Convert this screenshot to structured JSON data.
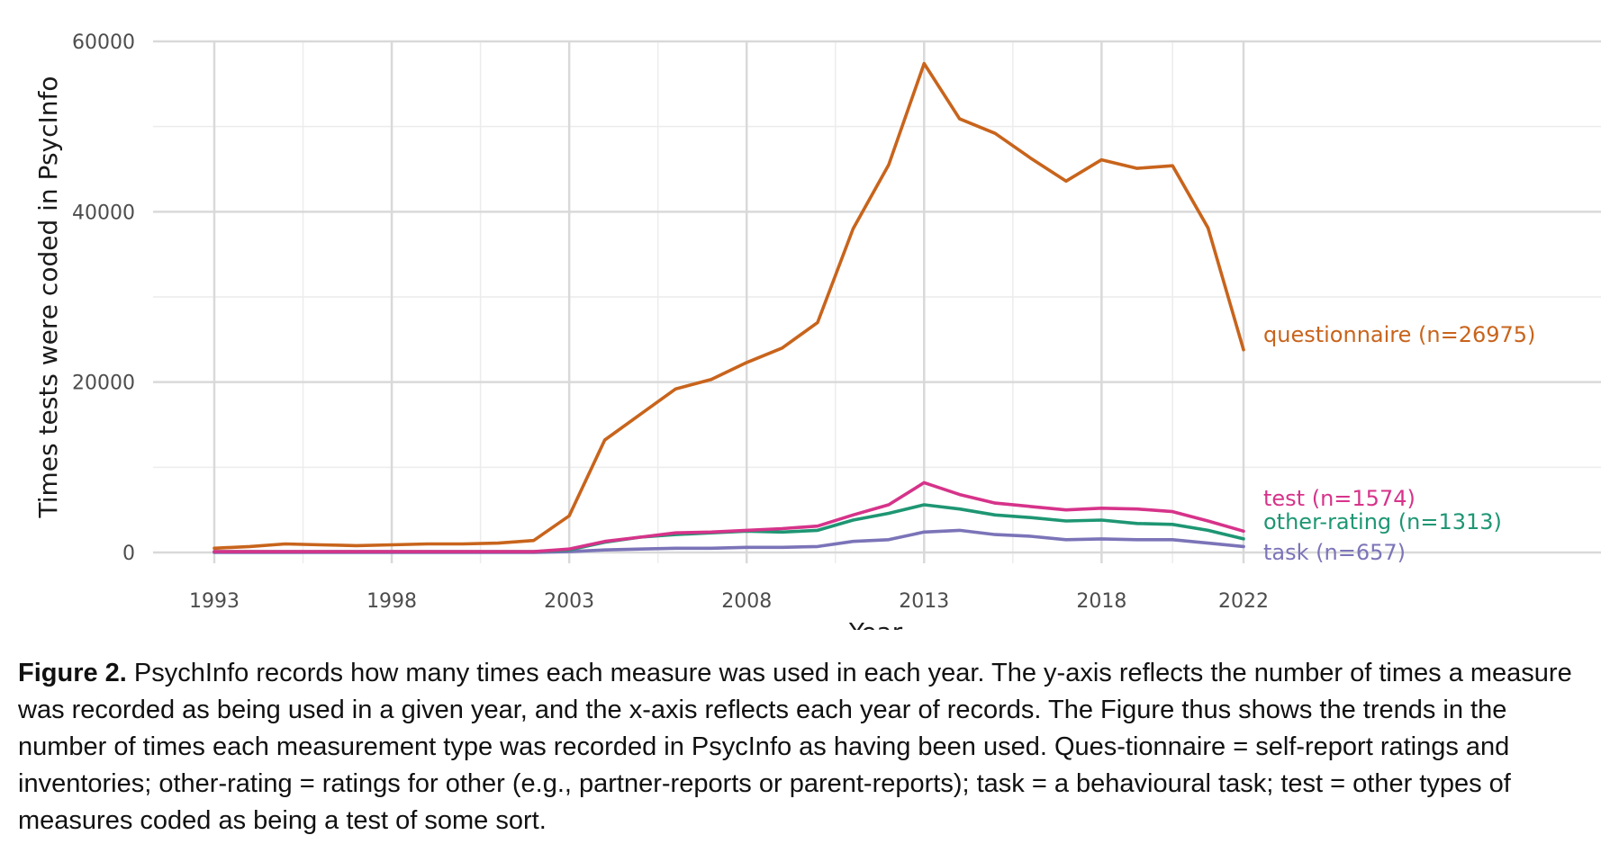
{
  "chart_data": {
    "type": "line",
    "xlabel": "Year",
    "ylabel": "Times tests were coded in PsycInfo",
    "xlim": [
      1993,
      2022
    ],
    "ylim": [
      0,
      60000
    ],
    "x_ticks": [
      "1993",
      "1998",
      "2003",
      "2008",
      "2013",
      "2018",
      "2022"
    ],
    "x_tick_values": [
      1993,
      1998,
      2003,
      2008,
      2013,
      2018,
      2022
    ],
    "y_ticks": [
      "0",
      "20000",
      "40000",
      "60000"
    ],
    "y_tick_values": [
      0,
      20000,
      40000,
      60000
    ],
    "grid": true,
    "legend": "direct labels at line ends",
    "x": [
      1993,
      1994,
      1995,
      1996,
      1997,
      1998,
      1999,
      2000,
      2001,
      2002,
      2003,
      2004,
      2005,
      2006,
      2007,
      2008,
      2009,
      2010,
      2011,
      2012,
      2013,
      2014,
      2015,
      2016,
      2017,
      2018,
      2019,
      2020,
      2021,
      2022
    ],
    "series": [
      {
        "name": "questionnaire (n=26975)",
        "color": "#c8641c",
        "values": [
          500,
          700,
          1000,
          900,
          800,
          900,
          1000,
          1000,
          1100,
          1400,
          4300,
          13200,
          16200,
          19200,
          20300,
          22300,
          24000,
          27000,
          38000,
          45500,
          57400,
          50900,
          49200,
          46300,
          43600,
          46100,
          45100,
          45400,
          38100,
          23800
        ]
      },
      {
        "name": "test (n=1574)",
        "color": "#d6338a",
        "values": [
          100,
          100,
          100,
          100,
          100,
          100,
          100,
          100,
          100,
          100,
          400,
          1300,
          1800,
          2300,
          2400,
          2600,
          2800,
          3100,
          4400,
          5600,
          8200,
          6800,
          5800,
          5400,
          5000,
          5200,
          5100,
          4800,
          3700,
          2500
        ]
      },
      {
        "name": "other-rating (n=1313)",
        "color": "#1e9673",
        "values": [
          100,
          100,
          100,
          100,
          100,
          100,
          100,
          100,
          100,
          100,
          300,
          1200,
          1800,
          2100,
          2300,
          2500,
          2400,
          2600,
          3800,
          4600,
          5600,
          5100,
          4400,
          4100,
          3700,
          3800,
          3400,
          3300,
          2600,
          1600
        ]
      },
      {
        "name": "task (n=657)",
        "color": "#7b74b8",
        "values": [
          0,
          0,
          0,
          0,
          0,
          0,
          0,
          0,
          0,
          0,
          100,
          300,
          400,
          500,
          500,
          600,
          600,
          700,
          1300,
          1500,
          2400,
          2600,
          2100,
          1900,
          1500,
          1600,
          1500,
          1500,
          1100,
          700
        ]
      }
    ]
  },
  "caption": {
    "label": "Figure 2.",
    "text": "PsychInfo records how many times each measure was used in each year. The y-axis reflects the number of times a measure was recorded as being used in a given year, and the x-axis reflects each year of records. The Figure thus shows the trends in the number of times each measurement type was recorded in PsycInfo as having been used. Ques-tionnaire = self-report ratings and inventories; other-rating = ratings for other (e.g., partner-reports or parent-reports); task = a behavioural task; test = other types of measures coded as being a test of some sort."
  }
}
